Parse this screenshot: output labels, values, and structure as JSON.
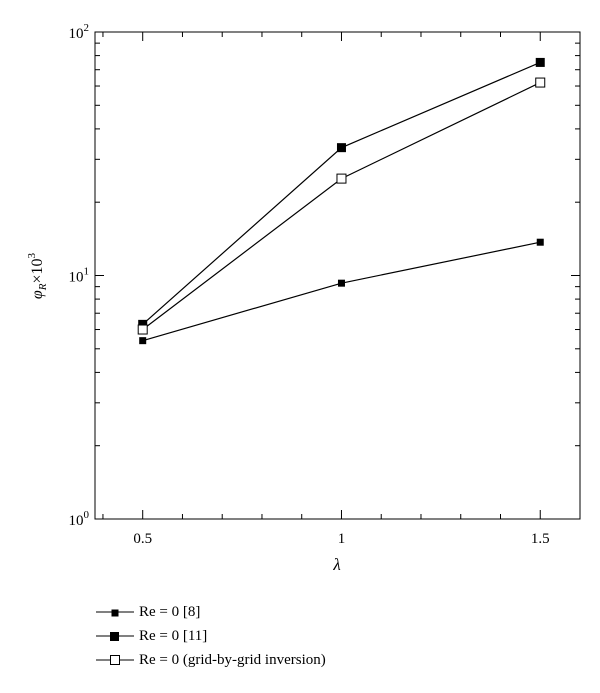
{
  "chart_data": {
    "type": "line",
    "xlabel": "λ",
    "ylabel": "φR×10³",
    "ylabel_parts": {
      "base": "φ",
      "sub": "R",
      "mid": "×10",
      "sup": "3"
    },
    "xlim": [
      0.38,
      1.6
    ],
    "ylim": [
      1,
      100
    ],
    "yscale": "log",
    "xticks": [
      0.5,
      1,
      1.5
    ],
    "xtick_labels": [
      "0.5",
      "1",
      "1.5"
    ],
    "yticks": [
      1,
      10,
      100
    ],
    "ytick_labels": [
      {
        "base": "10",
        "exp": "0"
      },
      {
        "base": "10",
        "exp": "1"
      },
      {
        "base": "10",
        "exp": "2"
      }
    ],
    "grid": false,
    "legend_position": "below",
    "series": [
      {
        "name": "Re = 0 [8]",
        "marker": "small-filled-square",
        "x": [
          0.5,
          1,
          1.5
        ],
        "y": [
          5.4,
          9.3,
          13.7
        ]
      },
      {
        "name": "Re = 0 [11]",
        "marker": "filled-square",
        "x": [
          0.5,
          1,
          1.5
        ],
        "y": [
          6.3,
          33.5,
          75
        ]
      },
      {
        "name": "Re = 0 (grid-by-grid inversion)",
        "marker": "open-square",
        "x": [
          0.5,
          1,
          1.5
        ],
        "y": [
          6.0,
          25,
          62
        ]
      }
    ]
  }
}
